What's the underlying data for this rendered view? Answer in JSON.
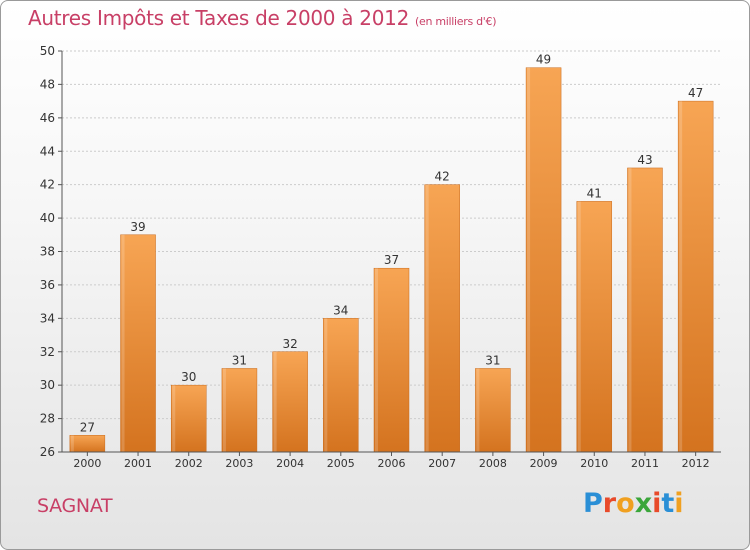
{
  "header": {
    "title": "Autres Impôts et Taxes de 2000 à 2012",
    "subtitle": "(en milliers d'€)"
  },
  "footer": {
    "commune": "SAGNAT",
    "logo_letters": [
      "P",
      "r",
      "o",
      "x",
      "i",
      "t",
      "i"
    ],
    "logo_colors": [
      "#2a8fd6",
      "#e84a2a",
      "#f0a020",
      "#3aa63a",
      "#e84a2a",
      "#2a8fd6",
      "#f0a020"
    ]
  },
  "colors": {
    "bar_top": "#f7a554",
    "bar_bottom": "#d4731f",
    "axis": "#555555",
    "grid": "#cccccc",
    "title": "#c83f66"
  },
  "chart_data": {
    "type": "bar",
    "categories": [
      "2000",
      "2001",
      "2002",
      "2003",
      "2004",
      "2005",
      "2006",
      "2007",
      "2008",
      "2009",
      "2010",
      "2011",
      "2012"
    ],
    "values": [
      27,
      39,
      30,
      31,
      32,
      34,
      37,
      42,
      31,
      49,
      41,
      43,
      47
    ],
    "ylim": [
      26,
      50
    ],
    "yticks": [
      26,
      28,
      30,
      32,
      34,
      36,
      38,
      40,
      42,
      44,
      46,
      48,
      50
    ],
    "grid": true,
    "data_labels": true
  }
}
